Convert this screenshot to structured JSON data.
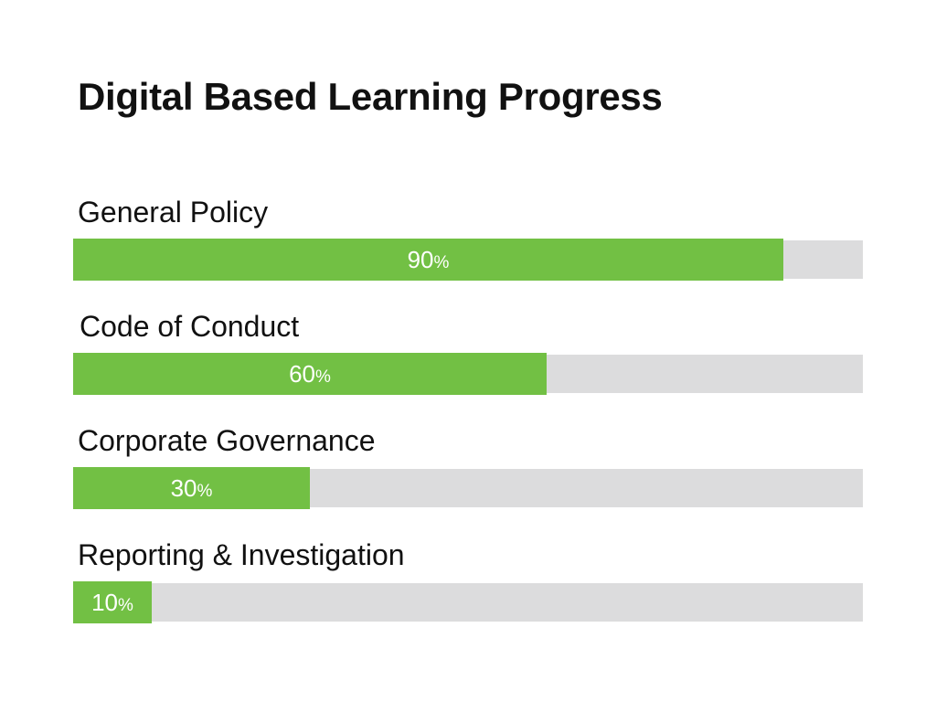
{
  "chart_data": {
    "type": "bar",
    "orientation": "horizontal",
    "title": "Digital Based Learning Progress",
    "categories": [
      "General Policy",
      "Code of Conduct",
      "Corporate Governance",
      "Reporting & Investigation"
    ],
    "values": [
      90,
      60,
      30,
      10
    ],
    "value_labels": [
      "90",
      "60",
      "30",
      "10"
    ],
    "unit": "%",
    "xlim": [
      0,
      100
    ],
    "grid": false,
    "legend": "none"
  },
  "colors": {
    "fill": "#72c044",
    "track": "#dcdcdd",
    "text": "#111111",
    "value_text": "#ffffff"
  }
}
